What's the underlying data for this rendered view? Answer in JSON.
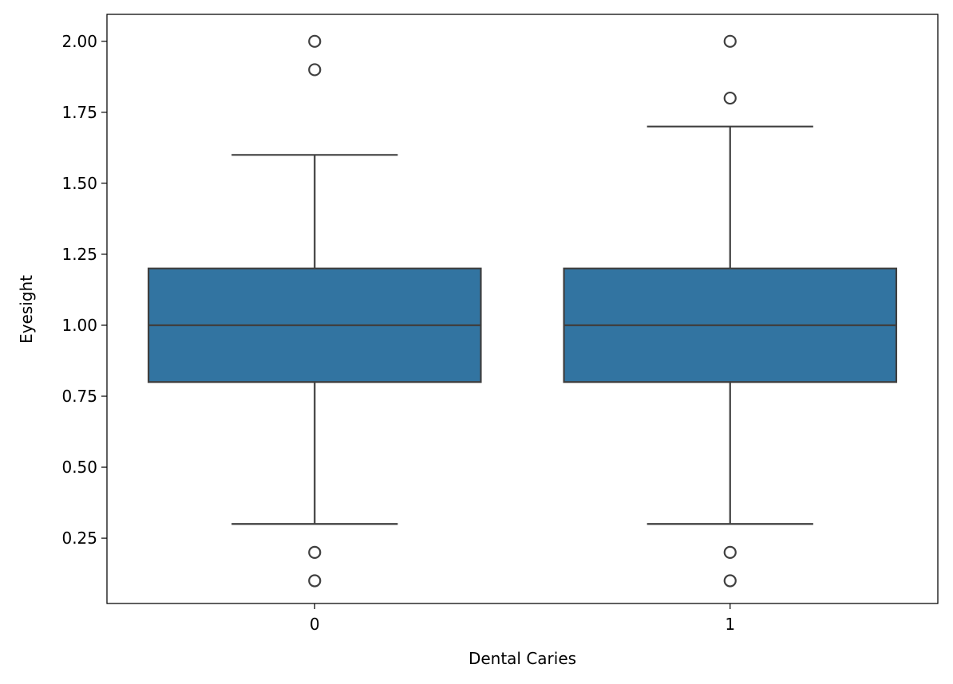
{
  "chart_data": {
    "type": "box",
    "xlabel": "Dental Caries",
    "ylabel": "Eyesight",
    "categories": [
      "0",
      "1"
    ],
    "ylim": [
      0.02,
      2.095
    ],
    "yticks": [
      0.25,
      0.5,
      0.75,
      1.0,
      1.25,
      1.5,
      1.75,
      2.0
    ],
    "ytick_labels": [
      "0.25",
      "0.50",
      "0.75",
      "1.00",
      "1.25",
      "1.50",
      "1.75",
      "2.00"
    ],
    "grid": false,
    "box_color": "#3274a1",
    "line_color": "#3f3f3f",
    "boxes": [
      {
        "category": "0",
        "q1": 0.8,
        "median": 1.0,
        "q3": 1.2,
        "whisker_low": 0.3,
        "whisker_high": 1.6,
        "outliers": [
          0.1,
          0.2,
          1.9,
          2.0
        ]
      },
      {
        "category": "1",
        "q1": 0.8,
        "median": 1.0,
        "q3": 1.2,
        "whisker_low": 0.3,
        "whisker_high": 1.7,
        "outliers": [
          0.1,
          0.2,
          1.8,
          2.0
        ]
      }
    ]
  }
}
